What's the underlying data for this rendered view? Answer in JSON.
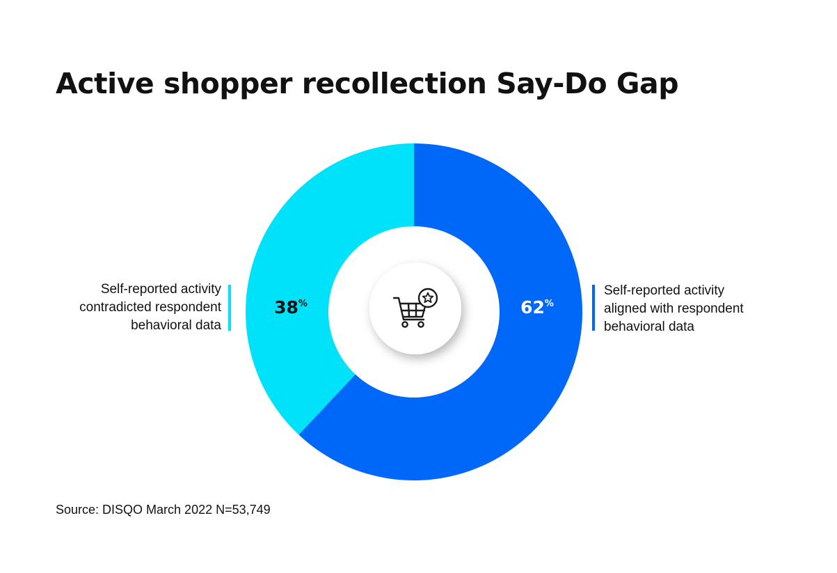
{
  "title": "Active shopper recollection Say-Do Gap",
  "source": "Source: DISQO March 2022 N=53,749",
  "center_icon": "shopping-cart-star-icon",
  "colors": {
    "aligned": "#0068F9",
    "contradicted": "#00E2F9",
    "text_dark": "#111111",
    "text_light": "#ffffff"
  },
  "chart_data": {
    "type": "pie",
    "donut": true,
    "slices": [
      {
        "value": 62,
        "label": "62",
        "unit": "%",
        "color": "#0068F9",
        "legend": [
          "Self-reported activity",
          "aligned with respondent",
          "behavioral data"
        ]
      },
      {
        "value": 38,
        "label": "38",
        "unit": "%",
        "color": "#00E2F9",
        "legend": [
          "Self-reported activity",
          "contradicted respondent",
          "behavioral data"
        ]
      }
    ]
  }
}
